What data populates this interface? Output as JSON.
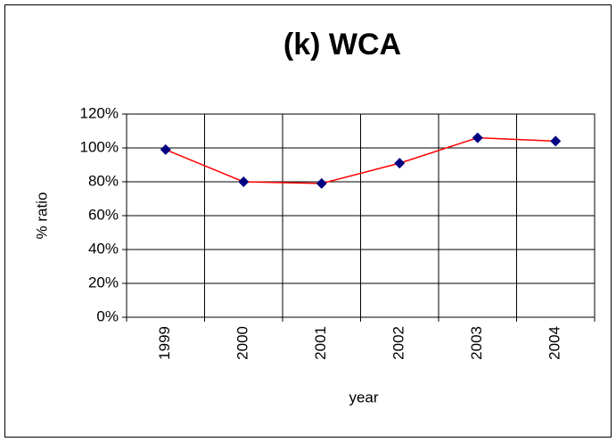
{
  "chart_data": {
    "type": "line",
    "title": "(k) WCA",
    "x_label": "year",
    "y_label": "% ratio",
    "categories": [
      "1999",
      "2000",
      "2001",
      "2002",
      "2003",
      "2004"
    ],
    "series": [
      {
        "name": "WCA",
        "line_color": "#ff0000",
        "marker_color": "#000080",
        "values": [
          99,
          80,
          79,
          91,
          106,
          104
        ]
      }
    ],
    "ylim": [
      0,
      120
    ],
    "yticks": [
      {
        "value": 0,
        "label": "0%"
      },
      {
        "value": 20,
        "label": "20%"
      },
      {
        "value": 40,
        "label": "40%"
      },
      {
        "value": 60,
        "label": "60%"
      },
      {
        "value": 80,
        "label": "80%"
      },
      {
        "value": 100,
        "label": "100%"
      },
      {
        "value": 120,
        "label": "120%"
      }
    ],
    "grid": true
  }
}
